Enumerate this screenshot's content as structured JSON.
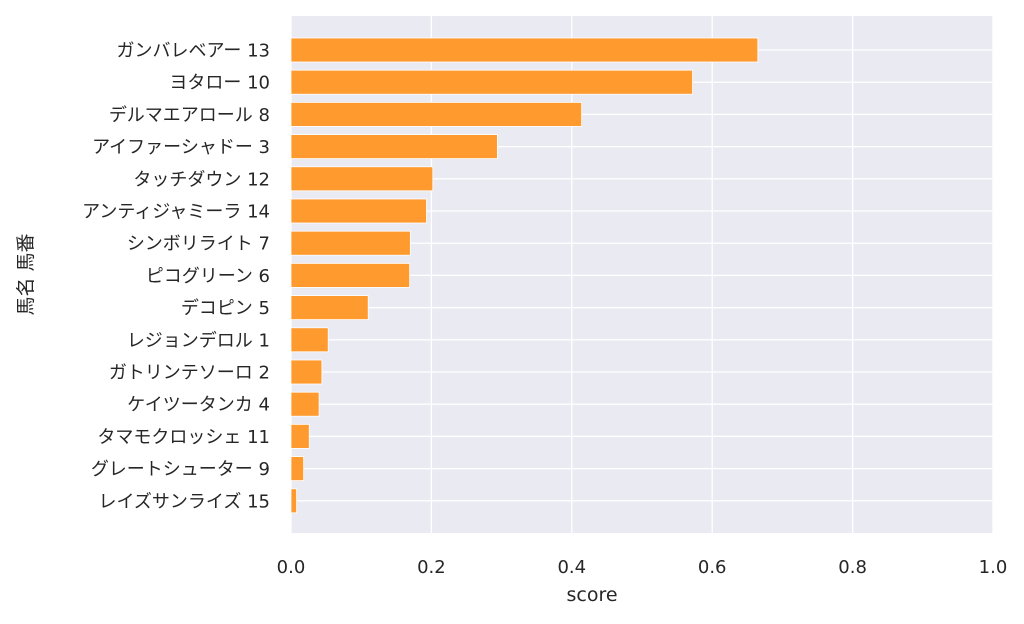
{
  "chart_data": {
    "type": "bar",
    "orientation": "horizontal",
    "categories": [
      "ガンバレベアー 13",
      "ヨタロー 10",
      "デルマエアロール 8",
      "アイファーシャドー 3",
      "タッチダウン 12",
      "アンティジャミーラ 14",
      "シンボリライト 7",
      "ピコグリーン 6",
      "デコピン 5",
      "レジョンデロル 1",
      "ガトリンテソーロ 2",
      "ケイツータンカ 4",
      "タマモクロッシェ 11",
      "グレートシューター 9",
      "レイズサンライズ 15"
    ],
    "values": [
      0.665,
      0.572,
      0.414,
      0.294,
      0.202,
      0.193,
      0.17,
      0.169,
      0.11,
      0.053,
      0.044,
      0.04,
      0.026,
      0.018,
      0.008
    ],
    "xlabel": "score",
    "ylabel": "馬名 馬番",
    "xlim": [
      0,
      1.0
    ],
    "xticks": [
      "0.0",
      "0.2",
      "0.4",
      "0.6",
      "0.8",
      "1.0"
    ],
    "grid": true,
    "colors": {
      "bar": "#ff9a2e",
      "plot_bg": "#eaeaf2",
      "grid": "#ffffff",
      "text": "#262626"
    }
  }
}
